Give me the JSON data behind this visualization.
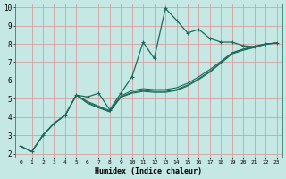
{
  "xlabel": "Humidex (Indice chaleur)",
  "background_color": "#c5e8e5",
  "grid_color": "#d8a0a0",
  "line_color": "#1a6b5a",
  "xlim": [
    -0.5,
    23.5
  ],
  "ylim": [
    1.8,
    10.2
  ],
  "xticks": [
    0,
    1,
    2,
    3,
    4,
    5,
    6,
    7,
    8,
    9,
    10,
    11,
    12,
    13,
    14,
    15,
    16,
    17,
    18,
    19,
    20,
    21,
    22,
    23
  ],
  "yticks": [
    2,
    3,
    4,
    5,
    6,
    7,
    8,
    9,
    10
  ],
  "x_data": [
    0,
    1,
    2,
    3,
    4,
    5,
    6,
    7,
    8,
    9,
    10,
    11,
    12,
    13,
    14,
    15,
    16,
    17,
    18,
    19,
    20,
    21,
    22,
    23
  ],
  "series": [
    [
      2.4,
      2.1,
      3.0,
      3.65,
      4.1,
      5.2,
      5.1,
      5.3,
      4.4,
      5.3,
      6.2,
      8.1,
      7.2,
      9.95,
      9.3,
      8.6,
      8.8,
      8.3,
      8.1,
      8.1,
      7.9,
      7.85,
      8.0,
      8.05
    ],
    [
      2.4,
      2.1,
      3.0,
      3.65,
      4.1,
      5.2,
      4.8,
      4.55,
      4.3,
      5.1,
      5.35,
      5.45,
      5.4,
      5.4,
      5.5,
      5.75,
      6.1,
      6.5,
      7.0,
      7.5,
      7.7,
      7.82,
      8.0,
      8.05
    ],
    [
      2.4,
      2.1,
      3.0,
      3.65,
      4.1,
      5.2,
      4.85,
      4.6,
      4.35,
      5.15,
      5.45,
      5.55,
      5.5,
      5.5,
      5.6,
      5.85,
      6.2,
      6.6,
      7.05,
      7.52,
      7.72,
      7.88,
      8.0,
      8.05
    ],
    [
      2.4,
      2.1,
      3.0,
      3.65,
      4.1,
      5.2,
      4.75,
      4.5,
      4.28,
      5.08,
      5.3,
      5.4,
      5.35,
      5.35,
      5.45,
      5.7,
      6.05,
      6.45,
      6.95,
      7.45,
      7.65,
      7.8,
      7.98,
      8.05
    ]
  ]
}
